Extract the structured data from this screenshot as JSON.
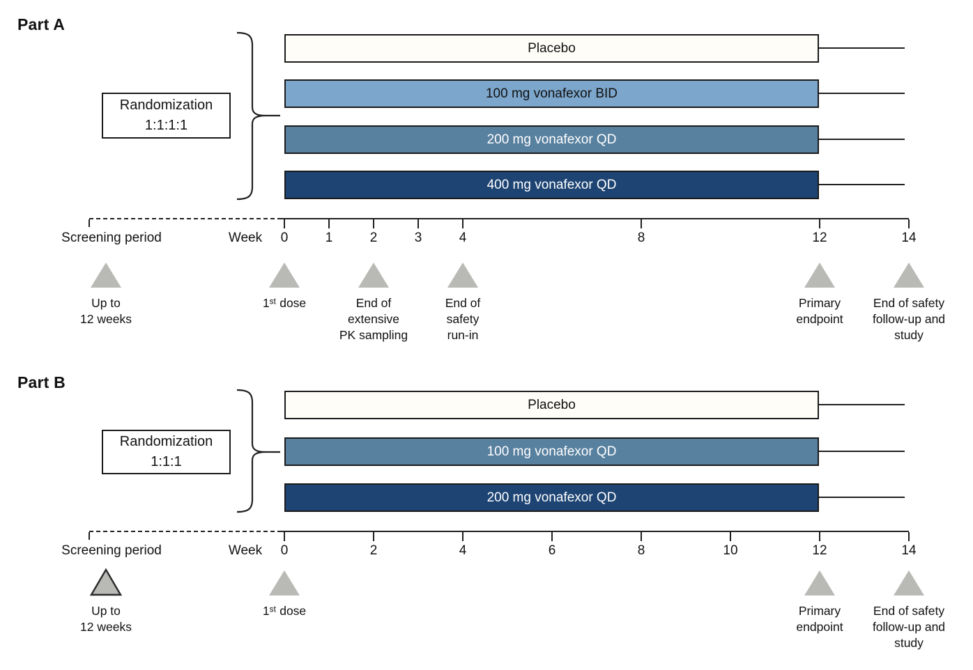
{
  "figure": {
    "description": "Clinical trial study design, two-part timeline schematic"
  },
  "colors": {
    "placebo_fill": "#fefdf8",
    "light_blue": "#7ca6cb",
    "medium_blue": "#58809f",
    "dark_blue": "#1d4473",
    "bar_border": "#1a1a1a",
    "triangle_gray": "#b9b9b6",
    "line_black": "#1f1f1f",
    "text_black": "#111111",
    "text_white": "#ffffff"
  },
  "parts": [
    {
      "title": "Part A",
      "randomization": {
        "line1": "Randomization",
        "line2": "1:1:1:1"
      },
      "arms": [
        {
          "label": "Placebo",
          "fill": "#fefdf8",
          "text": "#111111"
        },
        {
          "label": "100 mg vonafexor BID",
          "fill": "#7ca6cb",
          "text": "#111111"
        },
        {
          "label": "200 mg vonafexor QD",
          "fill": "#58809f",
          "text": "#ffffff"
        },
        {
          "label": "400 mg vonafexor QD",
          "fill": "#1d4473",
          "text": "#ffffff"
        }
      ],
      "axis": {
        "screening_label": "Screening period",
        "week_label": "Week",
        "ticks": [
          0,
          1,
          2,
          3,
          4,
          8,
          12,
          14
        ]
      },
      "markers": [
        {
          "at": "screening",
          "outlined": false,
          "lines": [
            "Up to",
            "12 weeks"
          ]
        },
        {
          "at": 0,
          "outlined": false,
          "lines": [
            "1ˢᵗ dose"
          ]
        },
        {
          "at": 2,
          "outlined": false,
          "lines": [
            "End of",
            "extensive",
            "PK sampling"
          ]
        },
        {
          "at": 4,
          "outlined": false,
          "lines": [
            "End of",
            "safety",
            "run-in"
          ]
        },
        {
          "at": 12,
          "outlined": false,
          "lines": [
            "Primary",
            "endpoint"
          ]
        },
        {
          "at": 14,
          "outlined": false,
          "lines": [
            "End of safety",
            "follow-up and",
            "study"
          ]
        }
      ]
    },
    {
      "title": "Part B",
      "randomization": {
        "line1": "Randomization",
        "line2": "1:1:1"
      },
      "arms": [
        {
          "label": "Placebo",
          "fill": "#fefdf8",
          "text": "#111111"
        },
        {
          "label": "100 mg vonafexor QD",
          "fill": "#58809f",
          "text": "#ffffff"
        },
        {
          "label": "200 mg vonafexor QD",
          "fill": "#1d4473",
          "text": "#ffffff"
        }
      ],
      "axis": {
        "screening_label": "Screening period",
        "week_label": "Week",
        "ticks": [
          0,
          2,
          4,
          6,
          8,
          10,
          12,
          14
        ]
      },
      "markers": [
        {
          "at": "screening",
          "outlined": true,
          "lines": [
            "Up to",
            "12 weeks"
          ]
        },
        {
          "at": 0,
          "outlined": false,
          "lines": [
            "1ˢᵗ dose"
          ]
        },
        {
          "at": 12,
          "outlined": false,
          "lines": [
            "Primary",
            "endpoint"
          ]
        },
        {
          "at": 14,
          "outlined": false,
          "lines": [
            "End of safety",
            "follow-up and",
            "study"
          ]
        }
      ]
    }
  ]
}
